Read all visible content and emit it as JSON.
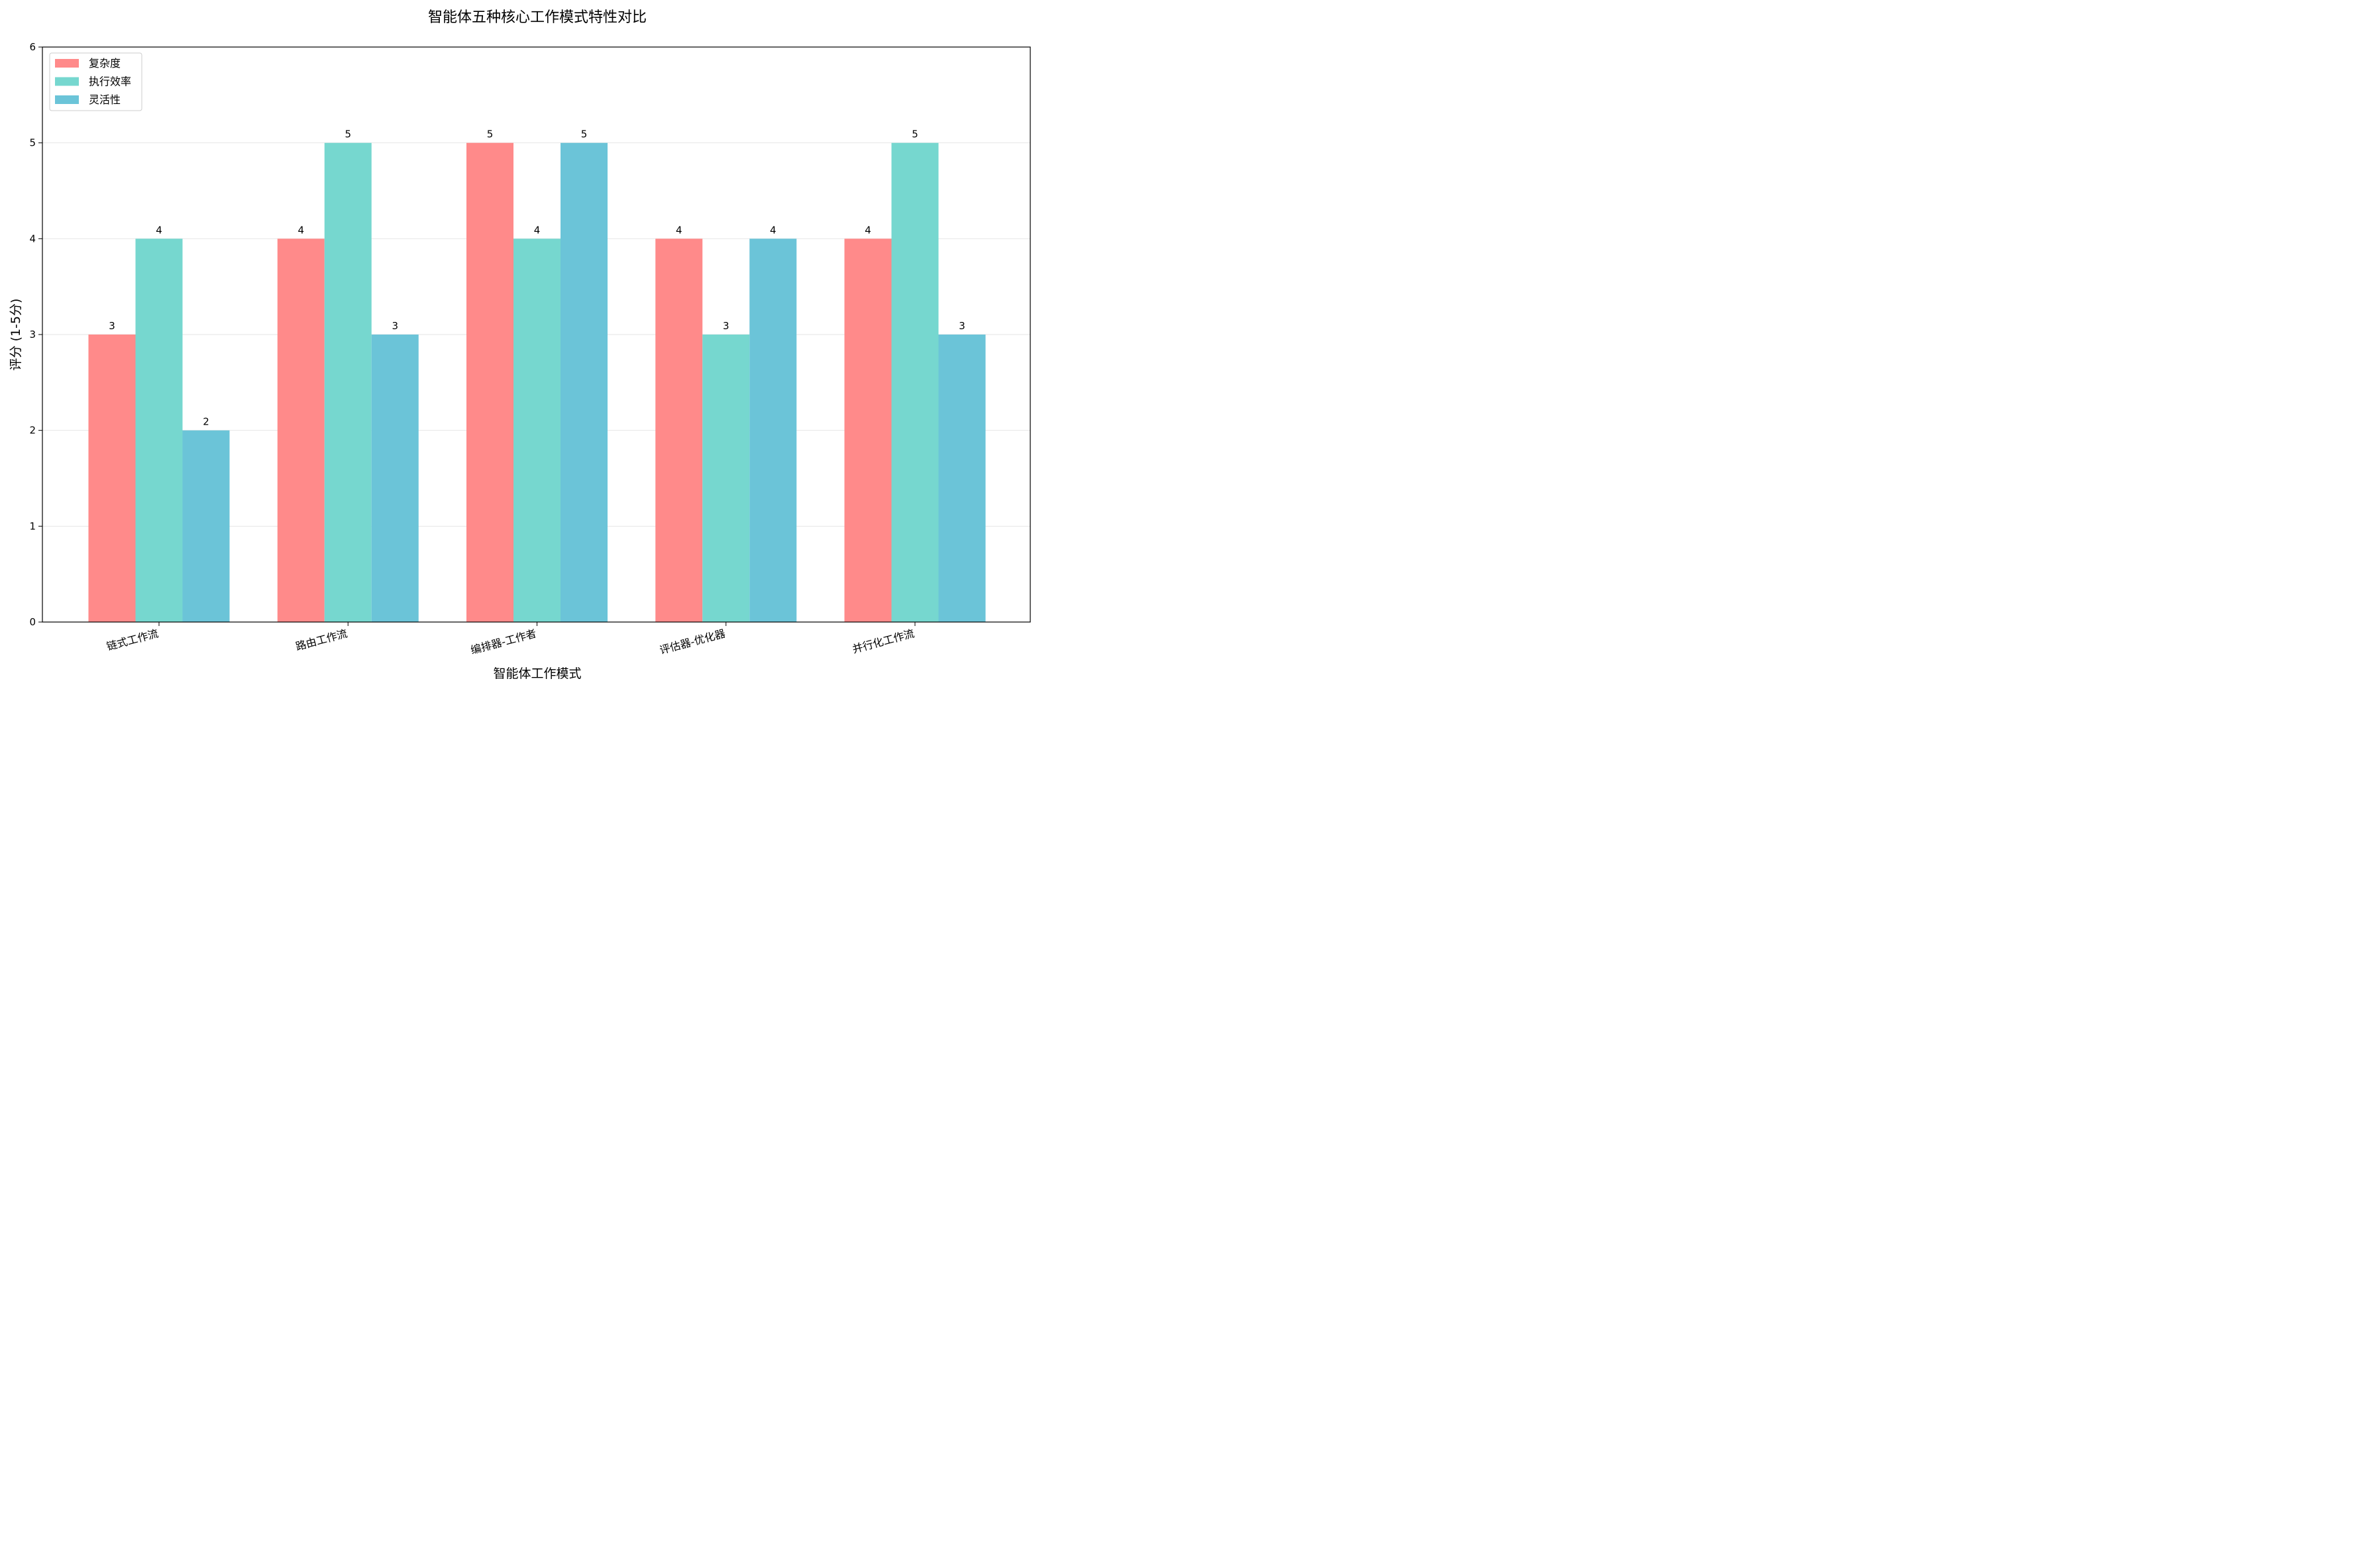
{
  "chart_data": {
    "type": "bar",
    "title": "智能体五种核心工作模式特性对比",
    "xlabel": "智能体工作模式",
    "ylabel": "评分 (1-5分)",
    "categories": [
      "链式工作流",
      "路由工作流",
      "编排器-工作者",
      "评估器-优化器",
      "并行化工作流"
    ],
    "series": [
      {
        "name": "复杂度",
        "values": [
          3,
          4,
          5,
          4,
          4
        ],
        "color": "#ff8a8a"
      },
      {
        "name": "执行效率",
        "values": [
          4,
          5,
          4,
          3,
          5
        ],
        "color": "#76d7cf"
      },
      {
        "name": "灵活性",
        "values": [
          2,
          3,
          5,
          4,
          3
        ],
        "color": "#6bc4d8"
      }
    ],
    "ylim": [
      0,
      6
    ],
    "yticks": [
      "0",
      "1",
      "2",
      "3",
      "4",
      "5",
      "6"
    ],
    "grid": "horizontal",
    "legend_position": "top-left",
    "show_value_labels": true
  }
}
